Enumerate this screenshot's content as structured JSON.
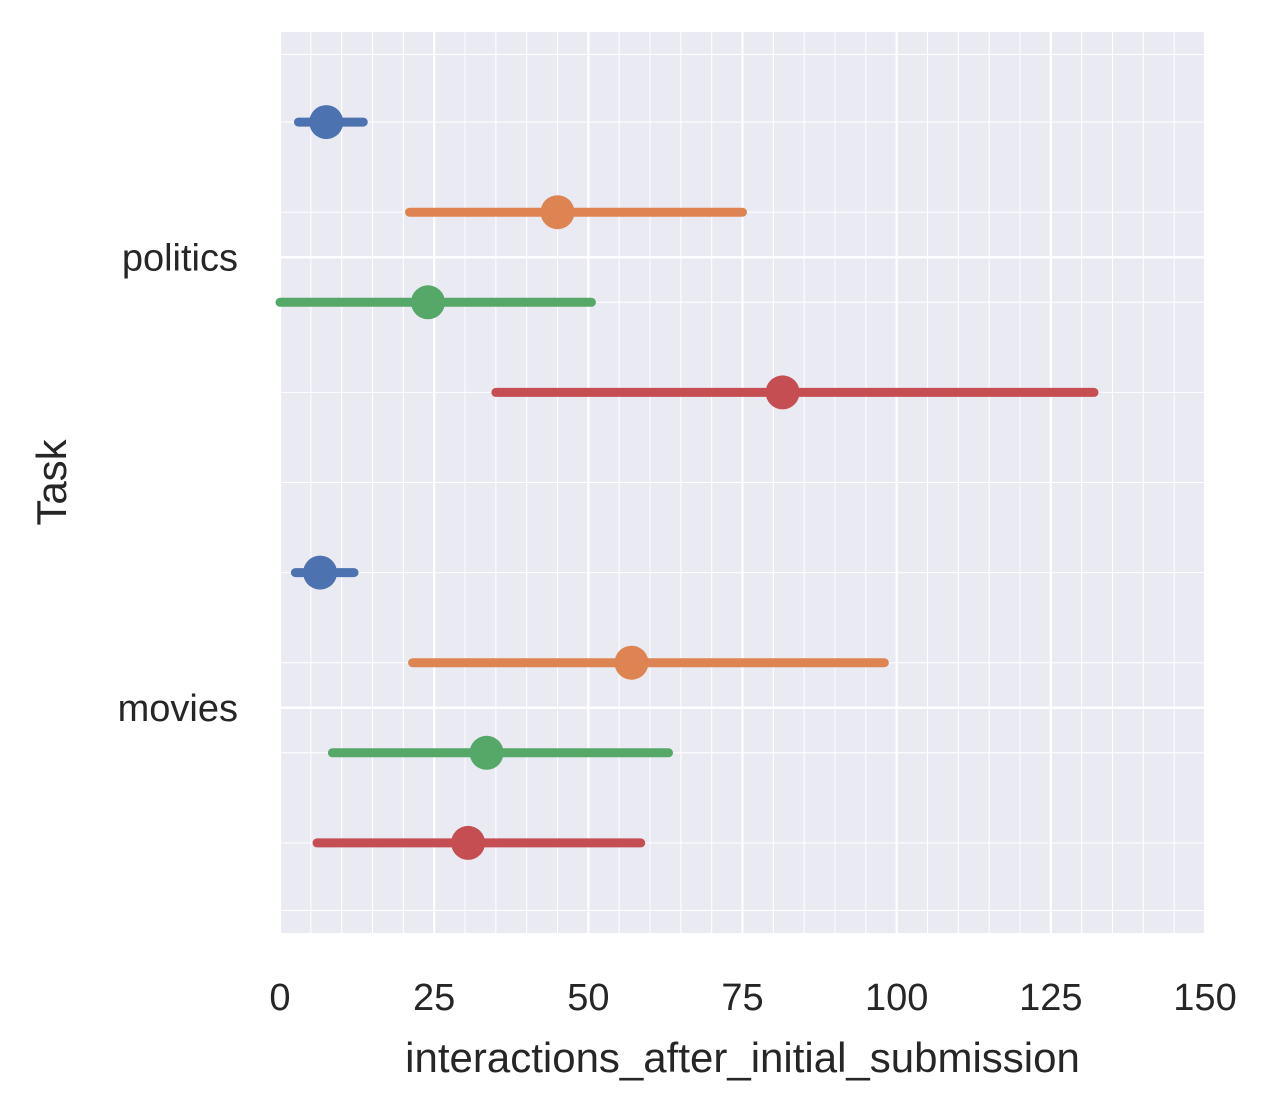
{
  "chart_data": {
    "type": "pointplot",
    "orientation": "horizontal",
    "xlabel": "interactions_after_initial_submission",
    "ylabel": "Task",
    "xlim": [
      0,
      150
    ],
    "xticks": [
      0,
      25,
      50,
      75,
      100,
      125,
      150
    ],
    "xtick_labels": [
      "0",
      "25",
      "50",
      "75",
      "100",
      "125",
      "150"
    ],
    "categories": [
      "politics",
      "movies"
    ],
    "grid": true,
    "legend": "none",
    "series": [
      {
        "color": "#4c72b0",
        "points": [
          {
            "category": "politics",
            "value": 7.5,
            "low": 3,
            "high": 13.5
          },
          {
            "category": "movies",
            "value": 6.5,
            "low": 2.5,
            "high": 12
          }
        ]
      },
      {
        "color": "#dd8452",
        "points": [
          {
            "category": "politics",
            "value": 45,
            "low": 21,
            "high": 75
          },
          {
            "category": "movies",
            "value": 57,
            "low": 21.5,
            "high": 98
          }
        ]
      },
      {
        "color": "#55a868",
        "points": [
          {
            "category": "politics",
            "value": 24,
            "low": 0,
            "high": 50.5
          },
          {
            "category": "movies",
            "value": 33.5,
            "low": 8.5,
            "high": 63
          }
        ]
      },
      {
        "color": "#c44e52",
        "points": [
          {
            "category": "politics",
            "value": 81.5,
            "low": 35,
            "high": 132
          },
          {
            "category": "movies",
            "value": 30.5,
            "low": 6,
            "high": 58.5
          }
        ]
      }
    ]
  }
}
